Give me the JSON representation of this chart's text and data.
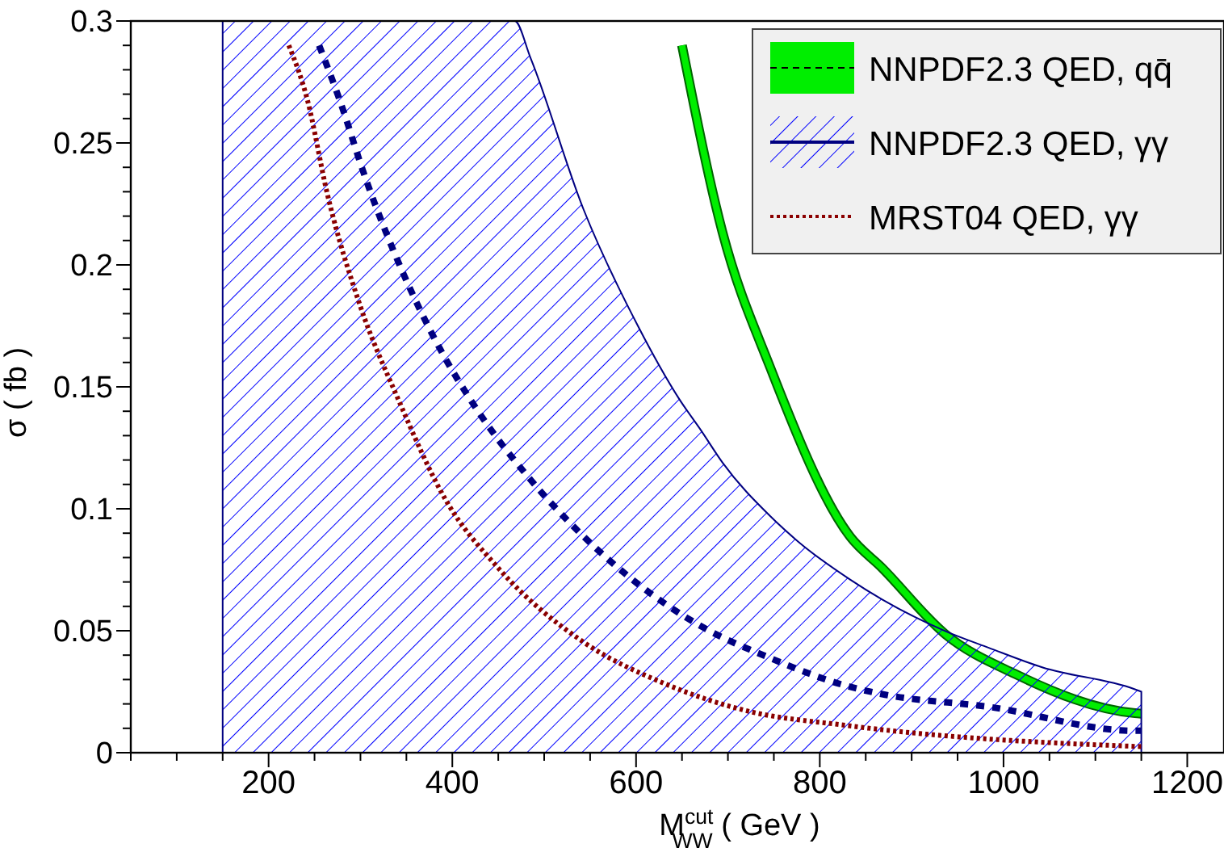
{
  "chart_data": {
    "type": "line",
    "xlabel": "M$^{cut}$$_{WW}$ ( GeV )",
    "ylabel": "σ ( fb )",
    "xlim": [
      50,
      1240
    ],
    "ylim": [
      0,
      0.3
    ],
    "xticks": [
      {
        "value": 50,
        "label": null
      },
      {
        "value": 100,
        "label": null
      },
      {
        "value": 150,
        "label": null
      },
      200,
      {
        "value": 250,
        "label": null
      },
      {
        "value": 300,
        "label": null
      },
      {
        "value": 350,
        "label": null
      },
      400,
      {
        "value": 450,
        "label": null
      },
      {
        "value": 500,
        "label": null
      },
      {
        "value": 550,
        "label": null
      },
      600,
      {
        "value": 650,
        "label": null
      },
      {
        "value": 700,
        "label": null
      },
      {
        "value": 750,
        "label": null
      },
      800,
      {
        "value": 850,
        "label": null
      },
      {
        "value": 900,
        "label": null
      },
      {
        "value": 950,
        "label": null
      },
      1000,
      {
        "value": 1050,
        "label": null
      },
      {
        "value": 1100,
        "label": null
      },
      {
        "value": 1150,
        "label": null
      },
      1200
    ],
    "yticks": [
      0,
      {
        "value": 0.01,
        "label": null
      },
      {
        "value": 0.02,
        "label": null
      },
      {
        "value": 0.03,
        "label": null
      },
      {
        "value": 0.04,
        "label": null
      },
      0.05,
      {
        "value": 0.06,
        "label": null
      },
      {
        "value": 0.07,
        "label": null
      },
      {
        "value": 0.08,
        "label": null
      },
      {
        "value": 0.09,
        "label": null
      },
      0.1,
      {
        "value": 0.11,
        "label": null
      },
      {
        "value": 0.12,
        "label": null
      },
      {
        "value": 0.13,
        "label": null
      },
      {
        "value": 0.14,
        "label": null
      },
      0.15,
      {
        "value": 0.16,
        "label": null
      },
      {
        "value": 0.17,
        "label": null
      },
      {
        "value": 0.18,
        "label": null
      },
      {
        "value": 0.19,
        "label": null
      },
      0.2,
      {
        "value": 0.21,
        "label": null
      },
      {
        "value": 0.22,
        "label": null
      },
      {
        "value": 0.23,
        "label": null
      },
      {
        "value": 0.24,
        "label": null
      },
      0.25,
      {
        "value": 0.26,
        "label": null
      },
      {
        "value": 0.27,
        "label": null
      },
      {
        "value": 0.28,
        "label": null
      },
      {
        "value": 0.29,
        "label": null
      },
      0.3
    ],
    "legend": "top right",
    "grid": false,
    "series": [
      {
        "name": "NNPDF2.3 QED, qq̄",
        "color": "#00ee00",
        "line_style": "solid",
        "x": [
          650,
          694,
          746,
          833,
          868,
          937,
          1012,
          1143,
          1150
        ],
        "values": [
          0.29,
          0.2135,
          0.158,
          0.0886,
          0.0757,
          0.0485,
          0.0324,
          0.0162,
          0.016
        ]
      },
      {
        "name": "NNPDF2.3 QED, γγ",
        "color": "#000080",
        "line_style": "dashed",
        "x": [
          150,
          255,
          277,
          306,
          346,
          386,
          428,
          468,
          485,
          543,
          602,
          647,
          671,
          694,
          746,
          776,
          833,
          868,
          937,
          984,
          1042,
          1143,
          1150
        ],
        "values": [
          null,
          0.29,
          0.268,
          0.235,
          0.197,
          0.166,
          0.14,
          null,
          0.112,
          0.0886,
          0.0692,
          null,
          0.0518,
          null,
          0.0388,
          null,
          0.027,
          0.024,
          null,
          0.0188,
          null,
          0.009,
          0.009
        ],
        "lower": [
          0,
          0,
          0,
          0,
          0,
          0,
          0,
          0,
          0,
          0,
          0,
          0,
          0,
          0,
          0,
          0,
          0,
          0,
          0,
          0,
          0,
          0,
          0
        ],
        "upper": [
          0.3,
          0.3,
          0.3,
          0.3,
          0.3,
          0.3,
          0.3,
          0.3,
          0.285,
          0.2226,
          0.175,
          0.145,
          0.132,
          0.119,
          0.097,
          0.0867,
          0.071,
          0.0628,
          0.0498,
          0.043,
          0.035,
          0.026,
          0.025
        ]
      },
      {
        "name": "MRST04 QED, γγ",
        "color": "#8b0000",
        "line_style": "dotted",
        "x": [
          222,
          242,
          264,
          299,
          341,
          393,
          450,
          543,
          630,
          717,
          833,
          1143,
          1150
        ],
        "values": [
          0.29,
          0.268,
          0.229,
          0.184,
          0.145,
          0.1035,
          0.0757,
          0.0453,
          0.0285,
          0.0175,
          0.011,
          0.0026,
          0.0025
        ]
      }
    ]
  }
}
